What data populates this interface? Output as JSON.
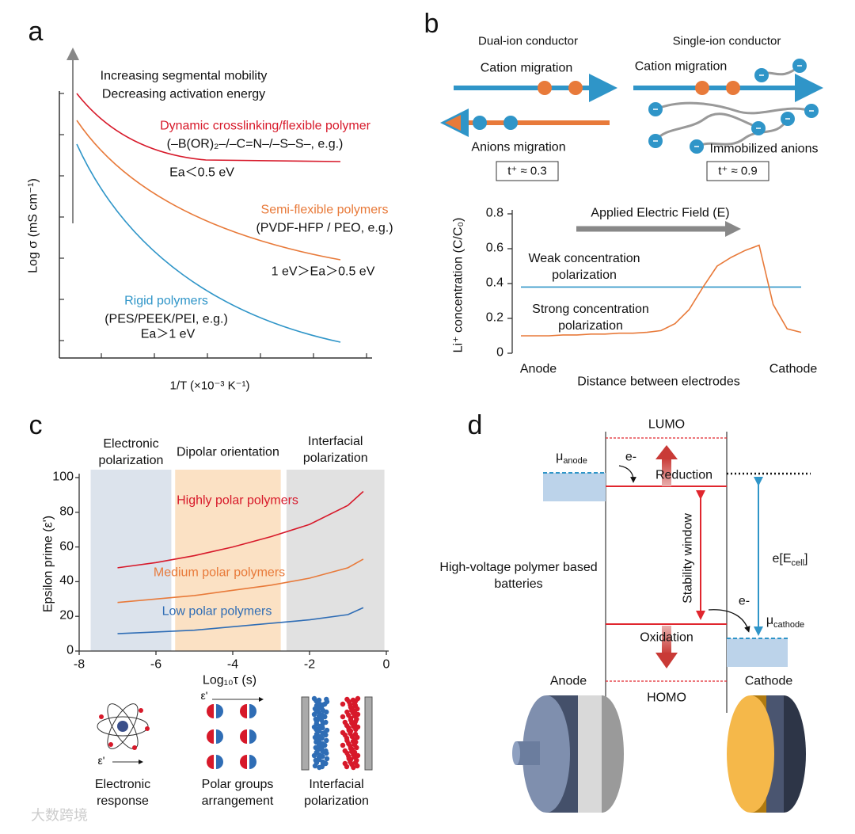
{
  "figure": {
    "a": {
      "label": "a",
      "arrow_text": [
        "Increasing segmental mobility",
        "Decreasing activation energy"
      ],
      "curves": [
        {
          "name": "Dynamic crosslinking/flexible polymer",
          "detail": "(–B(OR)₂–/–C=N–/–S–S–, e.g.)",
          "ea": "Ea＜0.5 eV",
          "color": "#d7192a"
        },
        {
          "name": "Semi-flexible polymers",
          "detail": "(PVDF-HFP / PEO, e.g.)",
          "ea": "1 eV＞Ea＞0.5 eV",
          "color": "#e87a3a"
        },
        {
          "name": "Rigid polymers",
          "detail": "(PES/PEEK/PEI, e.g.)",
          "ea": "Ea＞1 eV",
          "color": "#2f95c8"
        }
      ],
      "xlabel": "1/T (×10⁻³ K⁻¹)",
      "ylabel": "Log σ (mS cm⁻¹)"
    },
    "b": {
      "label": "b",
      "dual": {
        "title": "Dual-ion conductor",
        "cation": "Cation migration",
        "anion": "Anions migration",
        "t": "t⁺ ≈ 0.3"
      },
      "single": {
        "title": "Single-ion conductor",
        "cation": "Cation migration",
        "anion": "Immobilized anions",
        "t": "t⁺ ≈ 0.9"
      }
    },
    "c": {
      "label": "c",
      "symbol": "ε'",
      "icons": [
        "Electronic response",
        "Polar groups arrangement",
        "Interfacial polarization"
      ]
    },
    "d": {
      "label": "d",
      "lumo": "LUMO",
      "homo": "HOMO",
      "reduction": "Reduction",
      "oxidation": "Oxidation",
      "window": "Stability window",
      "electron": "e-",
      "mu_anode": [
        "μ",
        "anode"
      ],
      "mu_cathode": [
        "μ",
        "cathode"
      ],
      "e_cell": [
        "e[E",
        "cell",
        "]"
      ],
      "battery": "High-voltage polymer based batteries",
      "anode": "Anode",
      "cathode": "Cathode"
    },
    "watermark": "大数跨境"
  },
  "chart_data": [
    {
      "type": "line",
      "ylabel": "Li⁺ concentration (C/C₀)",
      "xlabel": "Distance between electrodes",
      "x_start": "Anode",
      "x_end": "Cathode",
      "annotation": "Applied Electric Field (E)",
      "ylim": [
        0,
        0.8
      ],
      "yticks": [
        0,
        0.2,
        0.4,
        0.6,
        0.8
      ],
      "series": [
        {
          "name": "Weak concentration polarization",
          "color": "#2f95c8",
          "values": [
            0.38,
            0.38,
            0.38,
            0.38,
            0.38,
            0.38,
            0.38,
            0.38,
            0.38,
            0.38,
            0.38,
            0.38,
            0.38,
            0.38,
            0.38,
            0.38,
            0.38,
            0.38,
            0.38,
            0.38,
            0.38
          ]
        },
        {
          "name": "Strong concentration polarization",
          "color": "#e87a3a",
          "values": [
            0.1,
            0.1,
            0.1,
            0.105,
            0.105,
            0.11,
            0.11,
            0.115,
            0.115,
            0.12,
            0.13,
            0.17,
            0.25,
            0.38,
            0.5,
            0.55,
            0.59,
            0.62,
            0.28,
            0.14,
            0.12
          ]
        }
      ]
    },
    {
      "type": "line",
      "ylabel": "Epsilon prime (ε')",
      "xlabel": "Log₁₀τ (s)",
      "xlim": [
        -8,
        0
      ],
      "xticks": [
        -8,
        -6,
        -4,
        -2,
        0
      ],
      "ylim": [
        0,
        100
      ],
      "yticks": [
        0,
        20,
        40,
        60,
        80,
        100
      ],
      "bands": [
        {
          "label": "Electronic polarization",
          "range": [
            -7.7,
            -5.6
          ],
          "color": "#dce3ec"
        },
        {
          "label": "Dipolar orientation",
          "range": [
            -5.5,
            -2.75
          ],
          "color": "#fbe1c4"
        },
        {
          "label": "Interfacial polarization",
          "range": [
            -2.6,
            -0.05
          ],
          "color": "#e1e1e1"
        }
      ],
      "x": [
        -7,
        -6,
        -5,
        -4,
        -3,
        -2,
        -1,
        -0.6
      ],
      "series": [
        {
          "name": "Highly polar polymers",
          "color": "#d7192a",
          "values": [
            48,
            51,
            55,
            60,
            66,
            73,
            84,
            92
          ]
        },
        {
          "name": "Medium polar polymers",
          "color": "#e87a3a",
          "values": [
            28,
            30,
            32,
            35,
            38,
            42,
            48,
            53
          ]
        },
        {
          "name": "Low polar polymers",
          "color": "#2f6db5",
          "values": [
            10,
            11,
            12,
            14,
            16,
            18,
            21,
            25
          ]
        }
      ]
    }
  ]
}
